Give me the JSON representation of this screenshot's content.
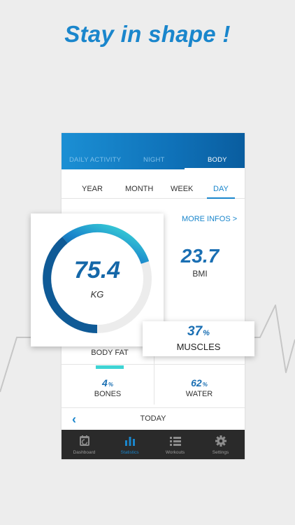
{
  "headline": "Stay in shape !",
  "colors": {
    "accent": "#1a86cc",
    "value_blue": "#1467a8",
    "teal": "#3fd4d4",
    "nav_bg": "#2a2a2a"
  },
  "main_tabs": [
    {
      "label": "DAILY ACTIVITY",
      "active": false
    },
    {
      "label": "NIGHT",
      "active": false
    },
    {
      "label": "BODY",
      "active": true
    }
  ],
  "range_tabs": [
    {
      "label": "YEAR",
      "active": false
    },
    {
      "label": "MONTH",
      "active": false
    },
    {
      "label": "WEEK",
      "active": false
    },
    {
      "label": "DAY",
      "active": true
    }
  ],
  "more_infos": "MORE INFOS >",
  "weight": {
    "value": "75.4",
    "unit": "KG"
  },
  "bmi": {
    "value": "23.7",
    "label": "BMI"
  },
  "body_fat": {
    "label": "BODY FAT"
  },
  "muscles": {
    "value": "37",
    "unit": "%",
    "label": "MUSCLES"
  },
  "bones": {
    "value": "4",
    "unit": "%",
    "label": "BONES"
  },
  "water": {
    "value": "62",
    "unit": "%",
    "label": "WATER"
  },
  "today": {
    "label": "TODAY",
    "prev_icon": "chevron-left-icon"
  },
  "bottom_nav": [
    {
      "label": "Dashboard",
      "icon": "dashboard-icon",
      "active": false
    },
    {
      "label": "Statistics",
      "icon": "bar-chart-icon",
      "active": true
    },
    {
      "label": "Workouts",
      "icon": "list-icon",
      "active": false
    },
    {
      "label": "Settings",
      "icon": "gear-icon",
      "active": false
    }
  ]
}
